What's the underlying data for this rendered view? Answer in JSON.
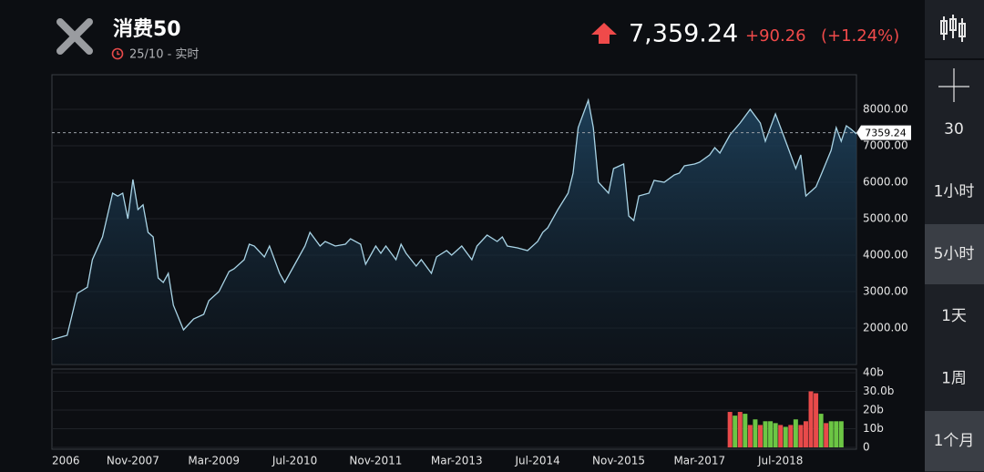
{
  "header": {
    "title": "消费50",
    "time": "25/10 - 实时",
    "price": "7,359.24",
    "change": "+90.26",
    "change_percent": "(+1.24%)"
  },
  "sidebar": {
    "items": [
      "30",
      "1小时",
      "5小时",
      "1天",
      "1周",
      "1个月"
    ]
  },
  "chart_data": [
    {
      "type": "area",
      "color": "#a9d4e6",
      "x": [
        "2006-07",
        "2006-10",
        "2006-12",
        "2007-02",
        "2007-03",
        "2007-05",
        "2007-07",
        "2007-08",
        "2007-09",
        "2007-10",
        "2007-11",
        "2007-12",
        "2008-01",
        "2008-02",
        "2008-03",
        "2008-04",
        "2008-05",
        "2008-06",
        "2008-07",
        "2008-09",
        "2008-11",
        "2009-01",
        "2009-02",
        "2009-04",
        "2009-06",
        "2009-07",
        "2009-09",
        "2009-10",
        "2009-11",
        "2010-01",
        "2010-02",
        "2010-04",
        "2010-05",
        "2010-07",
        "2010-09",
        "2010-10",
        "2010-12",
        "2011-01",
        "2011-03",
        "2011-05",
        "2011-06",
        "2011-08",
        "2011-09",
        "2011-11",
        "2011-12",
        "2012-01",
        "2012-03",
        "2012-04",
        "2012-05",
        "2012-07",
        "2012-08",
        "2012-10",
        "2012-11",
        "2013-01",
        "2013-02",
        "2013-04",
        "2013-06",
        "2013-07",
        "2013-09",
        "2013-11",
        "2013-12",
        "2014-01",
        "2014-03",
        "2014-05",
        "2014-07",
        "2014-08",
        "2014-09",
        "2014-11",
        "2015-01",
        "2015-02",
        "2015-03",
        "2015-05",
        "2015-06",
        "2015-07",
        "2015-09",
        "2015-10",
        "2015-12",
        "2016-01",
        "2016-02",
        "2016-03",
        "2016-05",
        "2016-06",
        "2016-08",
        "2016-10",
        "2016-11",
        "2016-12",
        "2017-02",
        "2017-03",
        "2017-05",
        "2017-06",
        "2017-07",
        "2017-09",
        "2017-11",
        "2018-01",
        "2018-03",
        "2018-04",
        "2018-06",
        "2018-08",
        "2018-10",
        "2018-11",
        "2018-12",
        "2019-02",
        "2019-03",
        "2019-05",
        "2019-06",
        "2019-07",
        "2019-08",
        "2019-09",
        "2019-10"
      ],
      "values": [
        1680,
        1800,
        2950,
        3120,
        3875,
        4500,
        5700,
        5620,
        5700,
        5000,
        6075,
        5250,
        5380,
        4625,
        4500,
        3375,
        3250,
        3500,
        2625,
        1950,
        2250,
        2375,
        2750,
        3000,
        3550,
        3625,
        3875,
        4300,
        4250,
        3950,
        4250,
        3500,
        3250,
        3750,
        4250,
        4625,
        4250,
        4375,
        4250,
        4300,
        4450,
        4300,
        3750,
        4250,
        4050,
        4250,
        3875,
        4300,
        4050,
        3700,
        3875,
        3500,
        3950,
        4125,
        4000,
        4250,
        3875,
        4250,
        4550,
        4375,
        4500,
        4250,
        4200,
        4125,
        4375,
        4625,
        4750,
        5250,
        5700,
        6250,
        7500,
        8250,
        7500,
        6000,
        5700,
        6375,
        6500,
        5075,
        4950,
        5625,
        5700,
        6050,
        6000,
        6200,
        6250,
        6450,
        6500,
        6550,
        6750,
        6950,
        6800,
        7300,
        7625,
        8000,
        7625,
        7125,
        7875,
        7125,
        6375,
        6750,
        5625,
        5875,
        6200,
        6875,
        7500,
        7125,
        7550,
        7450,
        7325
      ],
      "xlim": [
        "2006-07",
        "2019-10"
      ],
      "xticks": [
        {
          "value": "2006",
          "label": "2006"
        },
        {
          "value": "2007-11",
          "label": "Nov-2007"
        },
        {
          "value": "2009-03",
          "label": "Mar-2009"
        },
        {
          "value": "2010-07",
          "label": "Jul-2010"
        },
        {
          "value": "2011-11",
          "label": "Nov-2011"
        },
        {
          "value": "2013-03",
          "label": "Mar-2013"
        },
        {
          "value": "2014-07",
          "label": "Jul-2014"
        },
        {
          "value": "2015-11",
          "label": "Nov-2015"
        },
        {
          "value": "2017-03",
          "label": "Mar-2017"
        },
        {
          "value": "2018-07",
          "label": "Jul-2018"
        }
      ],
      "ylim": [
        1000,
        8950
      ],
      "yticks": [
        {
          "value": 2000,
          "label": "2000.00"
        },
        {
          "value": 3000,
          "label": "3000.00"
        },
        {
          "value": 4000,
          "label": "4000.00"
        },
        {
          "value": 5000,
          "label": "5000.00"
        },
        {
          "value": 6000,
          "label": "6000.00"
        },
        {
          "value": 7000,
          "label": "7000.00"
        },
        {
          "value": 8000,
          "label": "8000.00"
        }
      ],
      "last_value": 7359.24
    },
    {
      "type": "bar",
      "x": [
        "2017-09",
        "2017-10",
        "2017-11",
        "2017-12",
        "2018-01",
        "2018-02",
        "2018-03",
        "2018-04",
        "2018-05",
        "2018-06",
        "2018-07",
        "2018-08",
        "2018-09",
        "2018-10",
        "2018-11",
        "2018-12",
        "2019-01",
        "2019-02",
        "2019-03",
        "2019-04",
        "2019-05",
        "2019-06",
        "2019-07"
      ],
      "values": [
        19,
        17,
        19,
        18,
        12,
        15,
        12,
        14,
        14,
        13,
        12,
        11,
        12,
        15,
        12,
        14,
        30,
        29,
        18,
        13,
        14,
        14,
        14
      ],
      "colors": [
        "#e84a4a",
        "#6cc644",
        "#e84a4a",
        "#6cc644",
        "#e84a4a",
        "#6cc644",
        "#e84a4a",
        "#6cc644",
        "#6cc644",
        "#6cc644",
        "#e84a4a",
        "#6cc644",
        "#e84a4a",
        "#6cc644",
        "#e84a4a",
        "#e84a4a",
        "#e84a4a",
        "#e84a4a",
        "#6cc644",
        "#e84a4a",
        "#6cc644",
        "#6cc644",
        "#6cc644"
      ],
      "ylim": [
        0,
        40
      ],
      "yticks": [
        0,
        {
          "value": 10,
          "label": "10b"
        },
        {
          "value": 20,
          "label": "20b"
        },
        {
          "value": 30,
          "label": "30.0b"
        },
        {
          "value": 40,
          "label": "40b"
        }
      ]
    }
  ]
}
